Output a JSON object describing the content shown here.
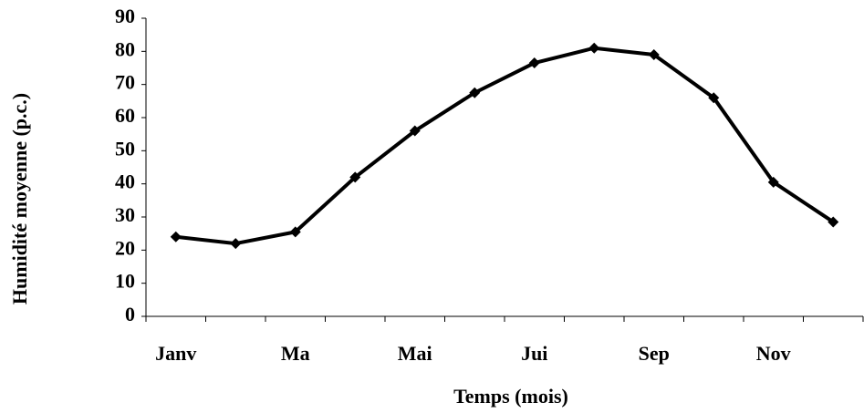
{
  "chart_data": {
    "type": "line",
    "x_label": "Temps (mois)",
    "y_label": "Humidité moyenne (p.c.)",
    "categories": [
      "Janv",
      null,
      "Ma",
      null,
      "Mai",
      null,
      "Jui",
      null,
      "Sep",
      null,
      "Nov",
      null
    ],
    "series": [
      {
        "color": "#000000",
        "values": [
          24,
          22,
          25.5,
          42,
          56,
          67.5,
          76.5,
          81,
          79,
          66,
          40.5,
          28.5
        ]
      }
    ],
    "ylim": [
      0,
      90
    ],
    "yticks": [
      0,
      10,
      20,
      30,
      40,
      50,
      60,
      70,
      80,
      90
    ],
    "grid": false
  }
}
